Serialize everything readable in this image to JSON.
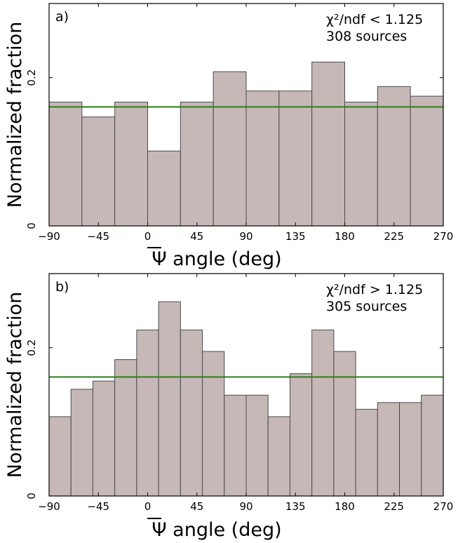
{
  "chart_data": [
    {
      "type": "bar",
      "panel_label": "a)",
      "annotation_lines": [
        "χ²/ndf < 1.125",
        "308 sources"
      ],
      "xlabel": "Ψ angle (deg)",
      "ylabel": "Normalized fraction",
      "x_ticks": [
        "−90",
        "−45",
        "0",
        "45",
        "90",
        "135",
        "180",
        "225",
        "270"
      ],
      "x_tick_values": [
        -90,
        -45,
        0,
        45,
        90,
        135,
        180,
        225,
        270
      ],
      "y_ticks": [
        "0",
        "0.2"
      ],
      "y_tick_values": [
        0,
        0.2
      ],
      "xlim": [
        -90,
        270
      ],
      "ylim": [
        0,
        0.3
      ],
      "bin_edges": [
        -90,
        -60,
        -30,
        0,
        30,
        60,
        90,
        120,
        150,
        180,
        210,
        240,
        270
      ],
      "values": [
        0.167,
        0.147,
        0.167,
        0.101,
        0.167,
        0.208,
        0.182,
        0.182,
        0.221,
        0.167,
        0.188,
        0.175
      ],
      "reference_line": 0.1605,
      "grid": false
    },
    {
      "type": "bar",
      "panel_label": "b)",
      "annotation_lines": [
        "χ²/ndf > 1.125",
        "305 sources"
      ],
      "xlabel": "Ψ angle (deg)",
      "ylabel": "Normalized fraction",
      "x_ticks": [
        "−90",
        "−45",
        "0",
        "45",
        "90",
        "135",
        "180",
        "225",
        "270"
      ],
      "x_tick_values": [
        -90,
        -45,
        0,
        45,
        90,
        135,
        180,
        225,
        270
      ],
      "y_ticks": [
        "0",
        "0.2"
      ],
      "y_tick_values": [
        0,
        0.2
      ],
      "xlim": [
        -90,
        270
      ],
      "ylim": [
        0,
        0.3
      ],
      "bin_edges": [
        -90,
        -70,
        -50,
        -30,
        -10,
        10,
        30,
        50,
        70,
        90,
        110,
        130,
        150,
        170,
        190,
        210,
        230,
        250,
        270
      ],
      "values": [
        0.107,
        0.144,
        0.155,
        0.184,
        0.224,
        0.262,
        0.224,
        0.195,
        0.136,
        0.136,
        0.107,
        0.165,
        0.224,
        0.195,
        0.117,
        0.126,
        0.126,
        0.136
      ],
      "reference_line": 0.1605,
      "grid": false
    }
  ]
}
